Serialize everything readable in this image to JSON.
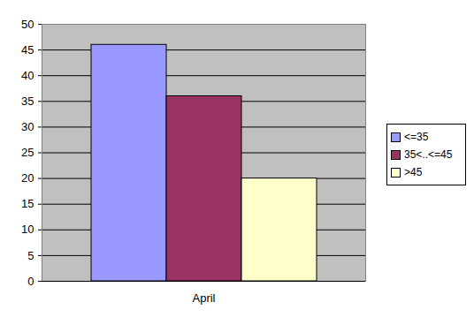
{
  "chart_data": {
    "type": "bar",
    "categories": [
      "April"
    ],
    "series": [
      {
        "name": "<=35",
        "color": "#9999ff",
        "values": [
          46
        ]
      },
      {
        "name": "35<..<=45",
        "color": "#993366",
        "values": [
          36
        ]
      },
      {
        "name": ">45",
        "color": "#ffffcc",
        "values": [
          20
        ]
      }
    ],
    "ylim": [
      0,
      50
    ],
    "yticks": [
      0,
      5,
      10,
      15,
      20,
      25,
      30,
      35,
      40,
      45,
      50
    ],
    "grid": true,
    "legend": "right"
  }
}
